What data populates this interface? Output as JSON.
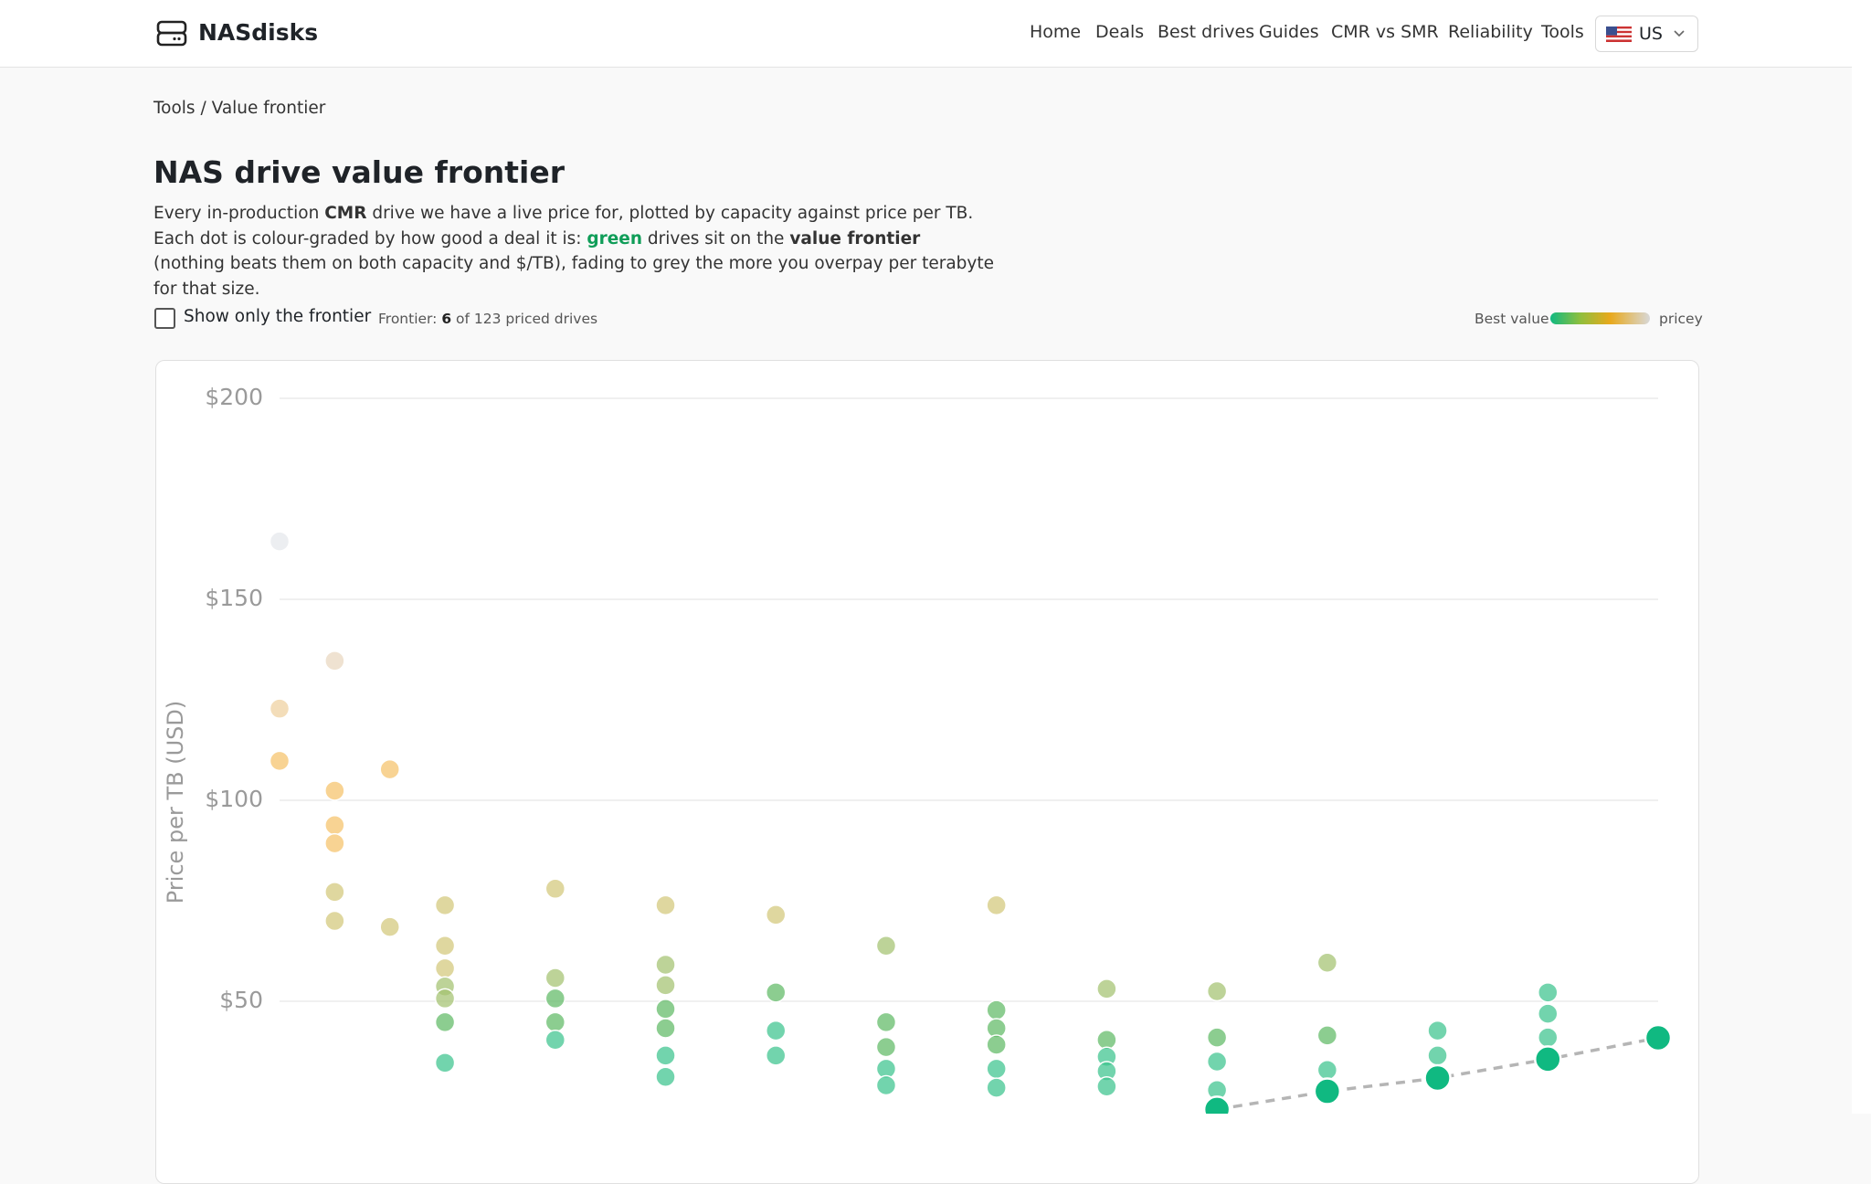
{
  "header": {
    "brand": "NASdisks",
    "nav": [
      "Home",
      "Deals",
      "Best drives",
      "Guides",
      "CMR vs SMR",
      "Reliability",
      "Tools"
    ],
    "region": "US"
  },
  "breadcrumb": {
    "parent": "Tools",
    "separator": "/",
    "current": "Value frontier"
  },
  "page": {
    "title": "NAS drive value frontier",
    "intro": [
      "Every in-production ",
      "CMR",
      " drive we have a live price for, plotted by capacity against price per TB. Each dot is colour-graded by how good a deal it is: ",
      "green",
      " drives sit on the ",
      "value frontier",
      " (nothing beats them on both capacity and $/TB), fading to grey the more you overpay per terabyte for that size."
    ]
  },
  "controls": {
    "checkbox_label": "Show only the frontier",
    "frontier_label": "Frontier:",
    "frontier_count": 6,
    "frontier_suffix": "of 123 priced drives",
    "legend_low": "Best value",
    "legend_high": "pricey"
  },
  "chart_data": {
    "type": "scatter",
    "y_label": "Price per TB (USD)",
    "xlim": [
      1,
      26
    ],
    "ylim": [
      0,
      200
    ],
    "yticks": [
      {
        "value": 200,
        "label": "$200"
      },
      {
        "value": 150,
        "label": "$150"
      },
      {
        "value": 100,
        "label": "$100"
      },
      {
        "value": 50,
        "label": "$50"
      }
    ],
    "grid": true,
    "frontier_line": true,
    "series": [
      {
        "color": "#e4e7ec",
        "x": [
          1
        ],
        "values": [
          164.4
        ]
      },
      {
        "color": "#e9d7bf",
        "x": [
          2
        ],
        "values": [
          134.7
        ]
      },
      {
        "color": "#efd09e",
        "x": [
          1
        ],
        "values": [
          122.8
        ]
      },
      {
        "color": "#f5c26a",
        "x": [
          1,
          2,
          2,
          2,
          3
        ],
        "values": [
          109.8,
          102.4,
          93.8,
          89.3,
          107.7
        ]
      },
      {
        "color": "#d2c77a",
        "x": [
          2,
          2,
          3,
          4,
          4,
          4,
          6,
          8,
          10,
          14
        ],
        "values": [
          77.2,
          70.0,
          68.5,
          73.9,
          63.8,
          58.2,
          78.0,
          73.9,
          71.5,
          73.9
        ]
      },
      {
        "color": "#a3c270",
        "x": [
          4,
          4,
          6,
          8,
          8,
          12,
          16,
          18,
          20
        ],
        "values": [
          53.7,
          50.7,
          55.8,
          59.1,
          54.0,
          63.8,
          53.1,
          52.5,
          59.6
        ]
      },
      {
        "color": "#5fba65",
        "x": [
          4,
          6,
          6,
          8,
          8,
          10,
          12,
          12,
          14,
          14,
          14,
          16,
          18,
          20
        ],
        "values": [
          44.8,
          44.8,
          50.7,
          48.1,
          43.3,
          52.2,
          44.8,
          38.6,
          47.8,
          43.3,
          39.2,
          40.4,
          41.0,
          41.5
        ]
      },
      {
        "color": "#3cc48e",
        "x": [
          4,
          6,
          8,
          8,
          10,
          10,
          12,
          12,
          14,
          14,
          16,
          16,
          16,
          18,
          18,
          20,
          22,
          22,
          24,
          24,
          24
        ],
        "values": [
          34.7,
          40.4,
          36.5,
          31.2,
          42.7,
          36.5,
          33.2,
          29.1,
          33.2,
          28.5,
          36.2,
          32.6,
          28.8,
          35.0,
          27.9,
          32.9,
          42.7,
          36.5,
          52.2,
          46.9,
          41.0
        ]
      },
      {
        "color": "#10b981",
        "frontier": true,
        "x": [
          18,
          20,
          22,
          24,
          26
        ],
        "values": [
          23.1,
          27.6,
          30.9,
          35.6,
          40.9
        ]
      }
    ]
  }
}
